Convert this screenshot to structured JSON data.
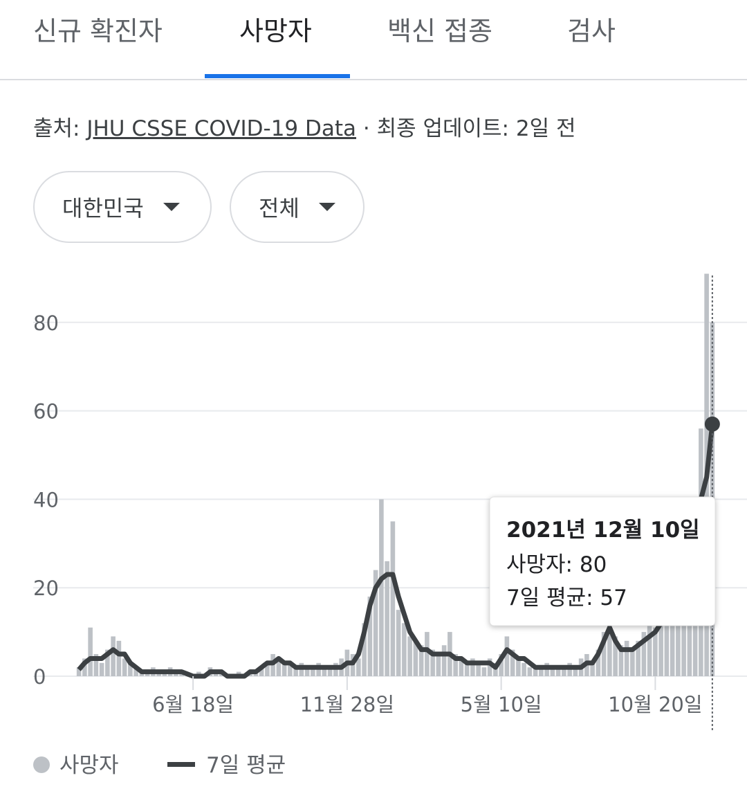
{
  "tabs": [
    "신규 확진자",
    "사망자",
    "백신 접종",
    "검사"
  ],
  "source": {
    "label": "출처:",
    "link": "JHU CSSE COVID-19 Data",
    "updated": "· 최종 업데이트: 2일 전"
  },
  "filters": [
    "대한민국",
    "전체"
  ],
  "chart_data": {
    "type": "bar-line",
    "categories": [
      null,
      null,
      null,
      null,
      null,
      null,
      null,
      null,
      null,
      null,
      null,
      null,
      null,
      null,
      null,
      null,
      null,
      null,
      null,
      null,
      "6월 18일",
      null,
      null,
      null,
      null,
      null,
      null,
      null,
      null,
      null,
      null,
      null,
      null,
      null,
      null,
      null,
      null,
      null,
      null,
      null,
      null,
      null,
      null,
      null,
      null,
      null,
      null,
      "11월 28일",
      null,
      null,
      null,
      null,
      null,
      null,
      null,
      null,
      null,
      null,
      null,
      null,
      null,
      null,
      null,
      null,
      null,
      null,
      null,
      null,
      null,
      null,
      null,
      null,
      null,
      null,
      "5월 10일",
      null,
      null,
      null,
      null,
      null,
      null,
      null,
      null,
      null,
      null,
      null,
      null,
      null,
      null,
      null,
      null,
      null,
      null,
      null,
      null,
      null,
      null,
      null,
      null,
      null,
      null,
      "10월 20일",
      null,
      null,
      null,
      null,
      null,
      null,
      null,
      null,
      null,
      null
    ],
    "series": [
      {
        "name": "사망자",
        "color": "#bdc1c6",
        "values": [
          2,
          4,
          11,
          5,
          3,
          6,
          9,
          8,
          4,
          3,
          2,
          1,
          1,
          2,
          1,
          1,
          2,
          1,
          1,
          0,
          0,
          1,
          0,
          2,
          1,
          1,
          0,
          0,
          1,
          0,
          1,
          1,
          2,
          3,
          5,
          4,
          3,
          3,
          2,
          3,
          2,
          2,
          3,
          2,
          2,
          3,
          4,
          6,
          5,
          4,
          12,
          18,
          24,
          40,
          26,
          35,
          15,
          12,
          9,
          8,
          7,
          10,
          6,
          5,
          7,
          10,
          5,
          4,
          3,
          4,
          3,
          2,
          4,
          3,
          5,
          9,
          6,
          4,
          3,
          2,
          2,
          2,
          3,
          2,
          2,
          2,
          3,
          2,
          4,
          5,
          3,
          6,
          10,
          14,
          9,
          7,
          8,
          6,
          8,
          10,
          12,
          11,
          13,
          16,
          18,
          22,
          26,
          30,
          38,
          56,
          91,
          80
        ]
      },
      {
        "name": "7일 평균",
        "color": "#3c4043",
        "values": [
          1.5,
          3,
          4,
          4,
          4,
          5,
          6,
          5,
          5,
          3,
          2,
          1,
          1,
          1,
          1,
          1,
          1,
          1,
          1,
          0.5,
          0,
          0,
          0,
          1,
          1,
          1,
          0,
          0,
          0,
          0,
          1,
          1,
          2,
          3,
          3,
          4,
          3,
          3,
          2,
          2,
          2,
          2,
          2,
          2,
          2,
          2,
          2,
          3,
          3,
          5,
          10,
          16,
          20,
          22,
          23,
          23,
          18,
          14,
          10,
          8,
          6,
          6,
          5,
          5,
          5,
          5,
          4,
          4,
          3,
          3,
          3,
          3,
          3,
          2,
          4,
          6,
          5,
          4,
          4,
          3,
          2,
          2,
          2,
          2,
          2,
          2,
          2,
          2,
          2,
          3,
          3,
          5,
          8,
          11,
          8,
          6,
          6,
          6,
          7,
          8,
          9,
          10,
          12,
          14,
          17,
          21,
          25,
          29,
          34,
          40,
          45,
          57
        ]
      }
    ],
    "ylim": [
      0,
      92
    ],
    "yticks": [
      0,
      20,
      40,
      60,
      80
    ],
    "grid": true,
    "tooltip": {
      "title": "2021년 12월 10일",
      "lines": [
        "사망자: 80",
        "7일 평균: 57"
      ]
    }
  }
}
